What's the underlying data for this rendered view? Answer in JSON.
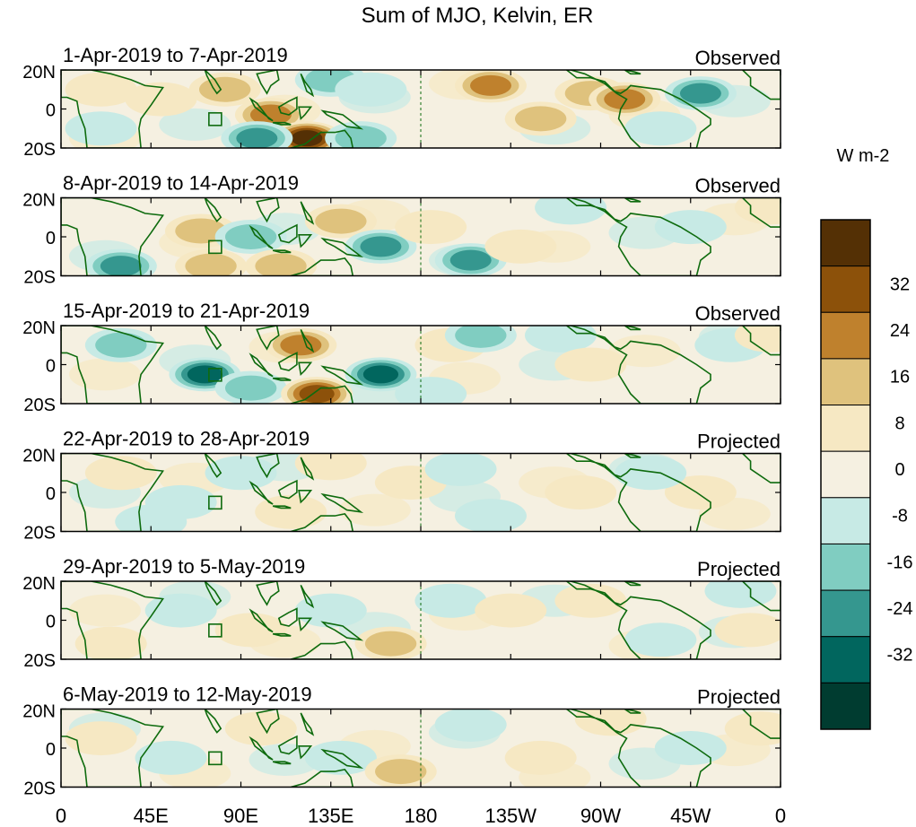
{
  "chart_data": {
    "type": "heatmap",
    "title": "Sum of MJO, Kelvin, ER",
    "colorbar": {
      "label": "W m-2",
      "tick_labels": [
        "32",
        "24",
        "16",
        "8",
        "0",
        "-8",
        "-16",
        "-24",
        "-32"
      ],
      "bins": [
        {
          "range": "> 40",
          "color": "#543005"
        },
        {
          "range": "32 to 40",
          "color": "#8c510a"
        },
        {
          "range": "24 to 32",
          "color": "#bf812d"
        },
        {
          "range": "16 to 24",
          "color": "#dfc27d"
        },
        {
          "range": "8 to 16",
          "color": "#f6e8c3"
        },
        {
          "range": "0 to 8",
          "color": "#f5f0e1"
        },
        {
          "range": "-8 to 0",
          "color": "#c7eae5"
        },
        {
          "range": "-16 to -8",
          "color": "#80cdc1"
        },
        {
          "range": "-24 to -16",
          "color": "#35978f"
        },
        {
          "range": "-32 to -24",
          "color": "#01665e"
        },
        {
          "range": "< -32",
          "color": "#003c30"
        }
      ]
    },
    "x_ticks": [
      "0",
      "45E",
      "90E",
      "135E",
      "180",
      "135W",
      "90W",
      "45W",
      "0"
    ],
    "y_ticks": [
      "20N",
      "0",
      "20S"
    ],
    "panels": [
      {
        "period": "1-Apr-2019 to 7-Apr-2019",
        "kind": "Observed",
        "blobs": [
          {
            "lon": 50,
            "lat": 5,
            "level": 1
          },
          {
            "lon": 82,
            "lat": 10,
            "level": 2
          },
          {
            "lon": 105,
            "lat": -3,
            "level": 3
          },
          {
            "lon": 123,
            "lat": -15,
            "level": 5
          },
          {
            "lon": 98,
            "lat": -15,
            "level": -3
          },
          {
            "lon": 135,
            "lat": 15,
            "level": -2
          },
          {
            "lon": 155,
            "lat": 10,
            "level": -1
          },
          {
            "lon": 150,
            "lat": -15,
            "level": -2
          },
          {
            "lon": 215,
            "lat": 12,
            "level": 3
          },
          {
            "lon": 240,
            "lat": -5,
            "level": 2
          },
          {
            "lon": 265,
            "lat": 8,
            "level": 2
          },
          {
            "lon": 282,
            "lat": 5,
            "level": 3
          },
          {
            "lon": 320,
            "lat": 8,
            "level": -3
          },
          {
            "lon": 300,
            "lat": -10,
            "level": -1
          },
          {
            "lon": 20,
            "lat": 10,
            "level": 1
          },
          {
            "lon": 20,
            "lat": -10,
            "level": -1
          }
        ]
      },
      {
        "period": "8-Apr-2019 to 14-Apr-2019",
        "kind": "Observed",
        "blobs": [
          {
            "lon": 30,
            "lat": -15,
            "level": -3
          },
          {
            "lon": 70,
            "lat": 3,
            "level": 2
          },
          {
            "lon": 95,
            "lat": 0,
            "level": -2
          },
          {
            "lon": 110,
            "lat": -15,
            "level": 2
          },
          {
            "lon": 140,
            "lat": 8,
            "level": 2
          },
          {
            "lon": 160,
            "lat": -5,
            "level": -3
          },
          {
            "lon": 185,
            "lat": 5,
            "level": 1
          },
          {
            "lon": 205,
            "lat": -12,
            "level": -3
          },
          {
            "lon": 230,
            "lat": -5,
            "level": 1
          },
          {
            "lon": 255,
            "lat": 15,
            "level": -1
          },
          {
            "lon": 315,
            "lat": 5,
            "level": -1
          },
          {
            "lon": 355,
            "lat": 15,
            "level": 1
          },
          {
            "lon": 75,
            "lat": -15,
            "level": 2
          }
        ]
      },
      {
        "period": "15-Apr-2019 to 21-Apr-2019",
        "kind": "Observed",
        "blobs": [
          {
            "lon": 30,
            "lat": 10,
            "level": -2
          },
          {
            "lon": 72,
            "lat": -5,
            "level": -4
          },
          {
            "lon": 95,
            "lat": -12,
            "level": -2
          },
          {
            "lon": 120,
            "lat": 10,
            "level": 3
          },
          {
            "lon": 128,
            "lat": -15,
            "level": 4
          },
          {
            "lon": 160,
            "lat": -5,
            "level": -4
          },
          {
            "lon": 195,
            "lat": 10,
            "level": 1
          },
          {
            "lon": 210,
            "lat": 15,
            "level": -2
          },
          {
            "lon": 250,
            "lat": 15,
            "level": -1
          },
          {
            "lon": 265,
            "lat": 0,
            "level": 1
          },
          {
            "lon": 335,
            "lat": 10,
            "level": -1
          },
          {
            "lon": 355,
            "lat": 15,
            "level": 1
          },
          {
            "lon": 185,
            "lat": -15,
            "level": -1
          }
        ]
      },
      {
        "period": "22-Apr-2019 to 28-Apr-2019",
        "kind": "Projected",
        "blobs": [
          {
            "lon": 30,
            "lat": 10,
            "level": 1
          },
          {
            "lon": 60,
            "lat": -5,
            "level": -1
          },
          {
            "lon": 90,
            "lat": 10,
            "level": -1
          },
          {
            "lon": 115,
            "lat": -10,
            "level": 1
          },
          {
            "lon": 135,
            "lat": 15,
            "level": 1
          },
          {
            "lon": 175,
            "lat": 5,
            "level": 1
          },
          {
            "lon": 200,
            "lat": 12,
            "level": -1
          },
          {
            "lon": 215,
            "lat": -12,
            "level": -1
          },
          {
            "lon": 260,
            "lat": 0,
            "level": 1
          },
          {
            "lon": 320,
            "lat": 0,
            "level": 1
          },
          {
            "lon": 295,
            "lat": 10,
            "level": -1
          },
          {
            "lon": 45,
            "lat": -15,
            "level": -1
          }
        ]
      },
      {
        "period": "29-Apr-2019 to 5-May-2019",
        "kind": "Projected",
        "blobs": [
          {
            "lon": 25,
            "lat": -12,
            "level": 1
          },
          {
            "lon": 60,
            "lat": 5,
            "level": -1
          },
          {
            "lon": 95,
            "lat": -5,
            "level": 1
          },
          {
            "lon": 135,
            "lat": 5,
            "level": -1
          },
          {
            "lon": 165,
            "lat": -12,
            "level": 2
          },
          {
            "lon": 195,
            "lat": 10,
            "level": -1
          },
          {
            "lon": 225,
            "lat": 5,
            "level": 1
          },
          {
            "lon": 265,
            "lat": 10,
            "level": 1
          },
          {
            "lon": 300,
            "lat": -10,
            "level": -1
          },
          {
            "lon": 345,
            "lat": -5,
            "level": 1
          },
          {
            "lon": 340,
            "lat": 15,
            "level": -1
          }
        ]
      },
      {
        "period": "6-May-2019 to 12-May-2019",
        "kind": "Projected",
        "blobs": [
          {
            "lon": 20,
            "lat": 5,
            "level": 1
          },
          {
            "lon": 55,
            "lat": -5,
            "level": -1
          },
          {
            "lon": 100,
            "lat": 10,
            "level": 1
          },
          {
            "lon": 140,
            "lat": -5,
            "level": -1
          },
          {
            "lon": 170,
            "lat": -12,
            "level": 2
          },
          {
            "lon": 205,
            "lat": 12,
            "level": -1
          },
          {
            "lon": 240,
            "lat": -5,
            "level": 1
          },
          {
            "lon": 275,
            "lat": 15,
            "level": 1
          },
          {
            "lon": 315,
            "lat": 0,
            "level": -1
          },
          {
            "lon": 350,
            "lat": 10,
            "level": 1
          }
        ]
      }
    ]
  }
}
